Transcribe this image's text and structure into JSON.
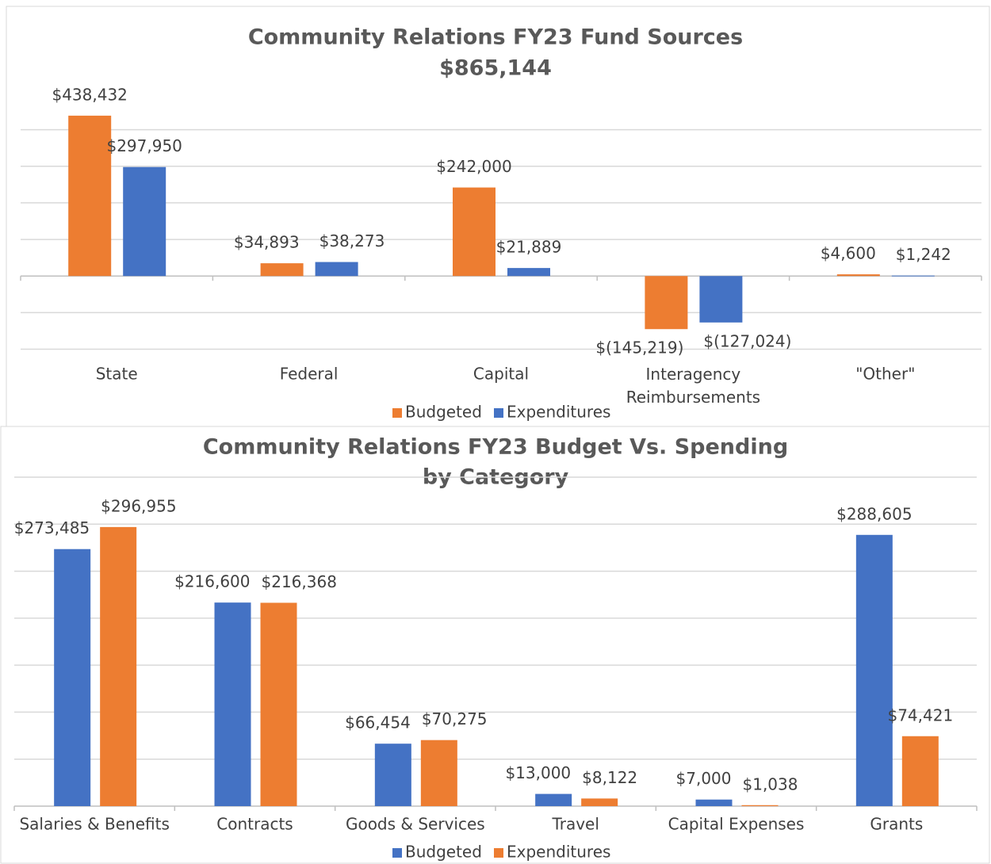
{
  "chart_data": [
    {
      "type": "bar",
      "title": "Community Relations FY23 Fund Sources",
      "subtitle": "$865,144",
      "categories": [
        "State",
        "Federal",
        "Capital",
        "Interagency Reimbursements",
        "\"Other\""
      ],
      "series": [
        {
          "name": "Budgeted",
          "color": "#ed7d31",
          "values": [
            438432,
            34893,
            242000,
            -145219,
            4600
          ],
          "value_labels": [
            "$438,432",
            "$34,893",
            "$242,000",
            "$(145,219)",
            "$4,600"
          ]
        },
        {
          "name": "Expenditures",
          "color": "#4472c4",
          "values": [
            297950,
            38273,
            21889,
            -127024,
            1242
          ],
          "value_labels": [
            "$297,950",
            "$38,273",
            "$21,889",
            "$(127,024)",
            "$1,242"
          ]
        }
      ],
      "ylim": [
        -200000,
        500000
      ],
      "yticks": [
        -200000,
        -100000,
        0,
        100000,
        200000,
        300000,
        400000
      ],
      "grid": true,
      "legend": "bottom"
    },
    {
      "type": "bar",
      "title": [
        "Community Relations FY23 Budget Vs. Spending",
        "by Category"
      ],
      "categories": [
        "Salaries & Benefits",
        "Contracts",
        "Goods & Services",
        "Travel",
        "Capital Expenses",
        "Grants"
      ],
      "series": [
        {
          "name": "Budgeted",
          "color": "#4472c4",
          "values": [
            273485,
            216600,
            66454,
            13000,
            7000,
            288605
          ],
          "value_labels": [
            "$273,485",
            "$216,600",
            "$66,454",
            "$13,000",
            "$7,000",
            "$288,605"
          ]
        },
        {
          "name": "Expenditures",
          "color": "#ed7d31",
          "values": [
            296955,
            216368,
            70275,
            8122,
            1038,
            74421
          ],
          "value_labels": [
            "$296,955",
            "$216,368",
            "$70,275",
            "$8,122",
            "$1,038",
            "$74,421"
          ]
        }
      ],
      "ylim": [
        0,
        350000
      ],
      "yticks": [
        0,
        50000,
        100000,
        150000,
        200000,
        250000,
        300000,
        350000
      ],
      "grid": true,
      "legend": "bottom"
    }
  ]
}
